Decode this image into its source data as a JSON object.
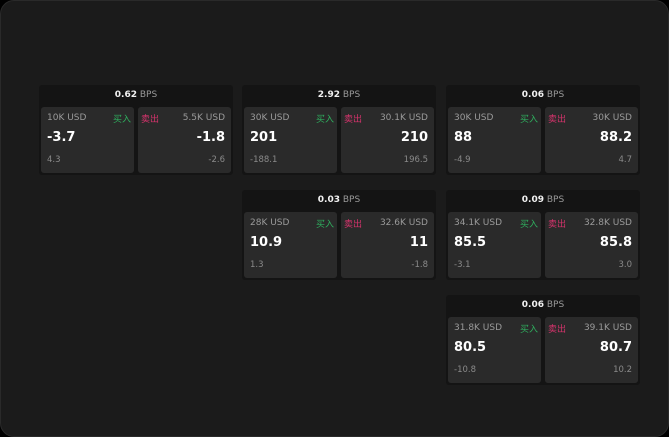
{
  "colors": {
    "buy": "#2fae5e",
    "sell": "#d6336c"
  },
  "buy_label": "买入",
  "sell_label": "卖出",
  "unit": "BPS",
  "cards": [
    {
      "spread": "0.62",
      "buy": {
        "qty": "10K USD",
        "price": "-3.7",
        "change": "4.3"
      },
      "sell": {
        "qty": "5.5K USD",
        "price": "-1.8",
        "change": "-2.6"
      }
    },
    {
      "spread": "2.92",
      "buy": {
        "qty": "30K USD",
        "price": "201",
        "change": "-188.1"
      },
      "sell": {
        "qty": "30.1K USD",
        "price": "210",
        "change": "196.5"
      }
    },
    {
      "spread": "0.06",
      "buy": {
        "qty": "30K USD",
        "price": "88",
        "change": "-4.9"
      },
      "sell": {
        "qty": "30K USD",
        "price": "88.2",
        "change": "4.7"
      }
    },
    {
      "spread": "0.03",
      "buy": {
        "qty": "28K USD",
        "price": "10.9",
        "change": "1.3"
      },
      "sell": {
        "qty": "32.6K USD",
        "price": "11",
        "change": "-1.8"
      }
    },
    {
      "spread": "0.09",
      "buy": {
        "qty": "34.1K USD",
        "price": "85.5",
        "change": "-3.1"
      },
      "sell": {
        "qty": "32.8K USD",
        "price": "85.8",
        "change": "3.0"
      }
    },
    {
      "spread": "0.06",
      "buy": {
        "qty": "31.8K USD",
        "price": "80.5",
        "change": "-10.8"
      },
      "sell": {
        "qty": "39.1K USD",
        "price": "80.7",
        "change": "10.2"
      }
    }
  ]
}
